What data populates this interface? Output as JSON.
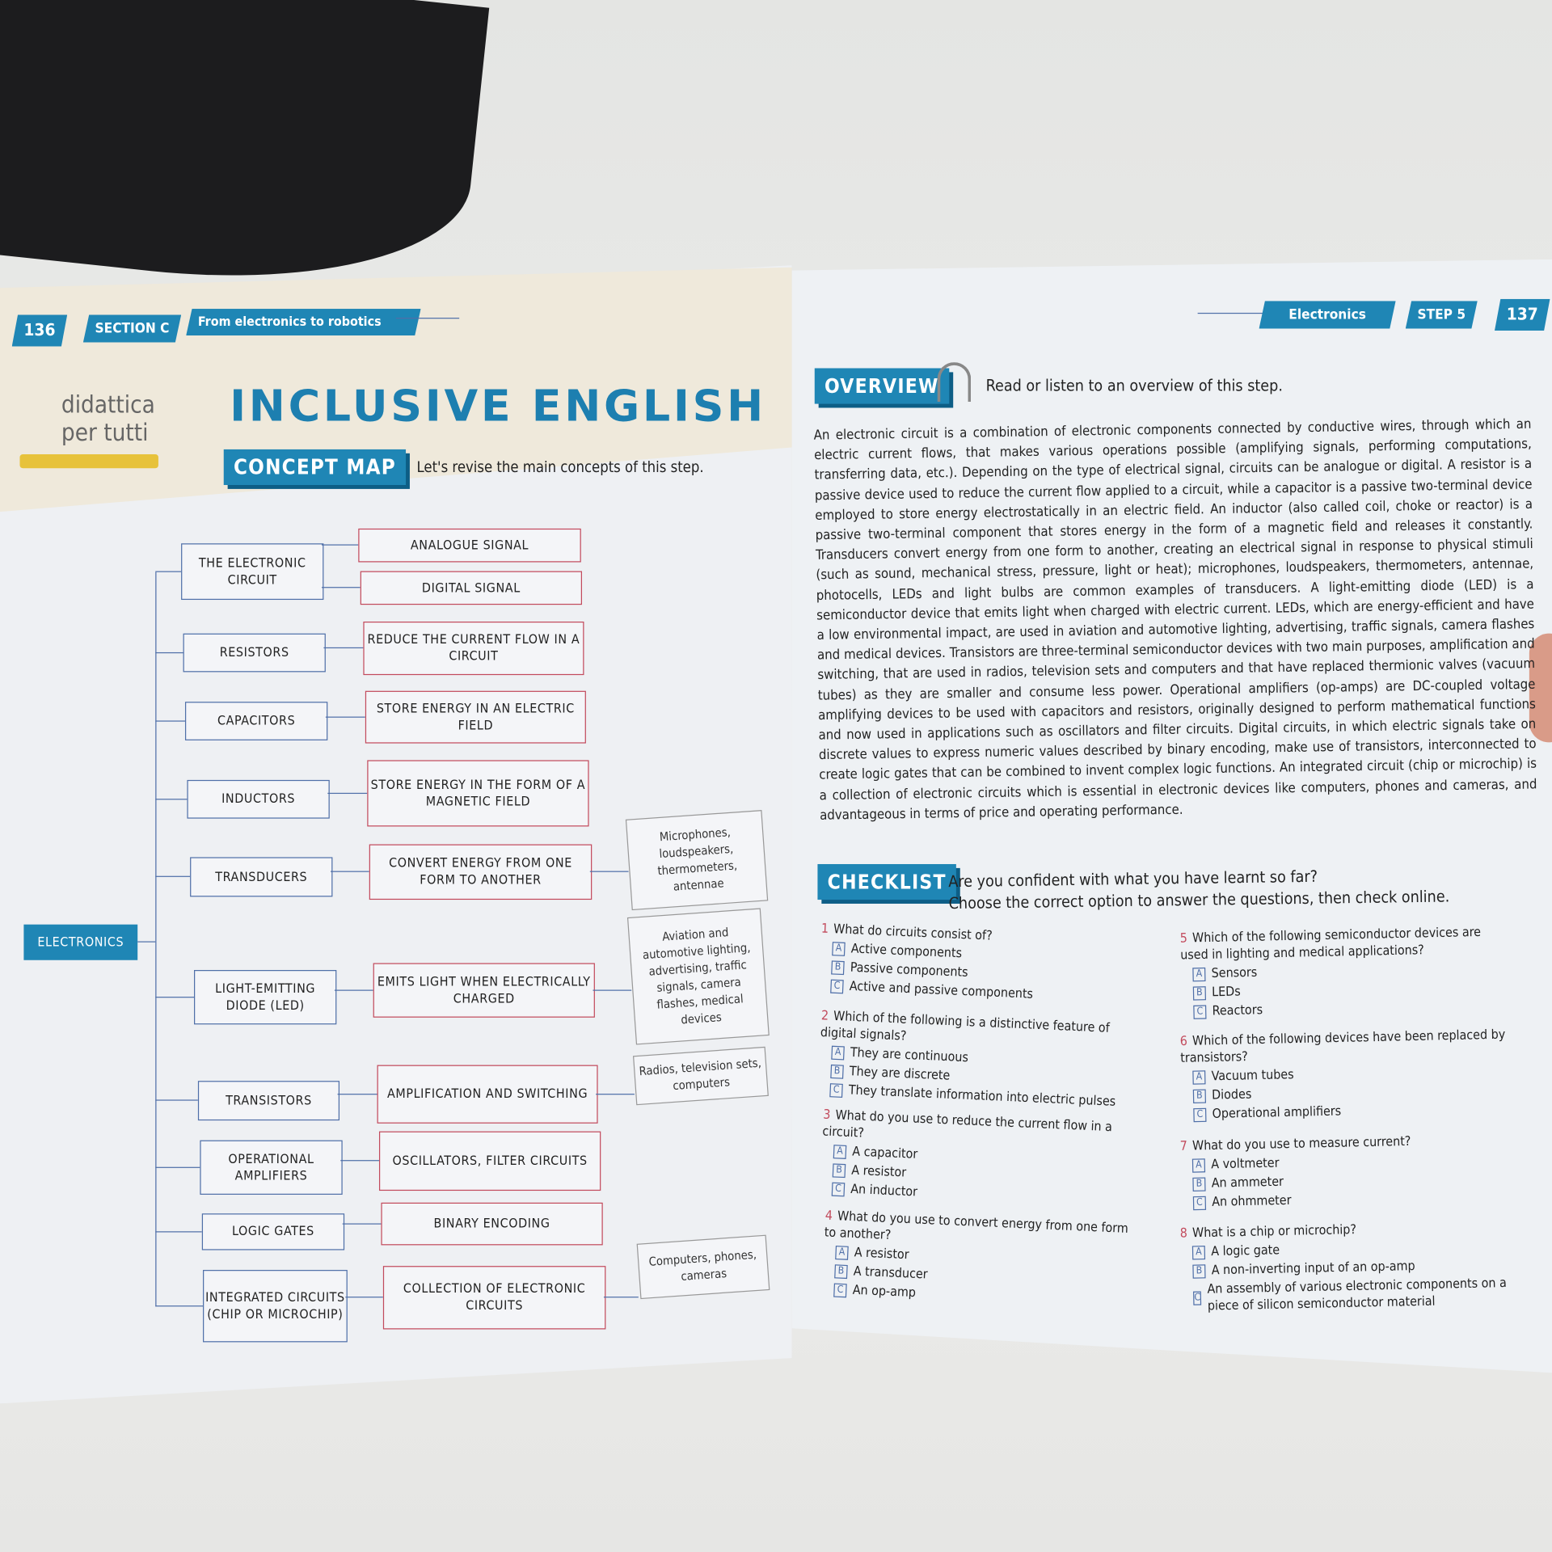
{
  "left_page": {
    "page_number": "136",
    "section": "SECTION C",
    "section_title": "From electronics to robotics",
    "logo": "didattica per tutti",
    "title": "INCLUSIVE ENGLISH",
    "badge": "CONCEPT MAP",
    "intro": "Let's revise the main concepts of this step.",
    "concept_map": {
      "root": "ELECTRONICS",
      "rows": [
        {
          "concept": "THE ELECTRONIC CIRCUIT",
          "details": [
            "ANALOGUE SIGNAL",
            "DIGITAL SIGNAL"
          ],
          "examples": ""
        },
        {
          "concept": "RESISTORS",
          "details": [
            "REDUCE THE CURRENT FLOW IN A CIRCUIT"
          ],
          "examples": ""
        },
        {
          "concept": "CAPACITORS",
          "details": [
            "STORE ENERGY IN AN ELECTRIC FIELD"
          ],
          "examples": ""
        },
        {
          "concept": "INDUCTORS",
          "details": [
            "STORE ENERGY IN THE FORM OF A MAGNETIC FIELD"
          ],
          "examples": ""
        },
        {
          "concept": "TRANSDUCERS",
          "details": [
            "CONVERT ENERGY FROM ONE FORM TO ANOTHER"
          ],
          "examples": "Microphones, loudspeakers, thermometers, antennae"
        },
        {
          "concept": "LIGHT-EMITTING DIODE (LED)",
          "details": [
            "EMITS LIGHT WHEN ELECTRICALLY CHARGED"
          ],
          "examples": "Aviation and automotive lighting, advertising, traffic signals, camera flashes, medical devices"
        },
        {
          "concept": "TRANSISTORS",
          "details": [
            "AMPLIFICATION AND SWITCHING"
          ],
          "examples": "Radios, television sets, computers"
        },
        {
          "concept": "OPERATIONAL AMPLIFIERS",
          "details": [
            "OSCILLATORS, FILTER CIRCUITS"
          ],
          "examples": ""
        },
        {
          "concept": "LOGIC GATES",
          "details": [
            "BINARY ENCODING"
          ],
          "examples": ""
        },
        {
          "concept": "INTEGRATED CIRCUITS (CHIP OR MICROCHIP)",
          "details": [
            "COLLECTION OF ELECTRONIC CIRCUITS"
          ],
          "examples": "Computers, phones, cameras"
        }
      ]
    }
  },
  "right_page": {
    "subject": "Electronics",
    "step": "STEP 5",
    "page_number": "137",
    "overview_badge": "OVERVIEW",
    "overview_intro": "Read or listen to an overview of this step.",
    "overview_text": "An electronic circuit is a combination of electronic components connected by conductive wires, through which an electric current flows, that makes various operations possible (amplifying signals, performing computations, transferring data, etc.). Depending on the type of electrical signal, circuits can be analogue or digital. A resistor is a passive device used to reduce the current flow applied to a circuit, while a capacitor is a passive two-terminal device employed to store energy electrostatically in an electric field. An inductor (also called coil, choke or reactor) is a passive two-terminal component that stores energy in the form of a magnetic field and releases it constantly. Transducers convert energy from one form to another, creating an electrical signal in response to physical stimuli (such as sound, mechanical stress, pressure, light or heat); microphones, loudspeakers, thermometers, antennae, photocells, LEDs and light bulbs are common examples of transducers. A light-emitting diode (LED) is a semiconductor device that emits light when charged with electric current. LEDs, which are energy-efficient and have a low environmental impact, are used in aviation and automotive lighting, advertising, traffic signals, camera flashes and medical devices. Transistors are three-terminal semiconductor devices with two main purposes, amplification and switching, that are used in radios, television sets and computers and that have replaced thermionic valves (vacuum tubes) as they are smaller and consume less power. Operational amplifiers (op-amps) are DC-coupled voltage amplifying devices to be used with capacitors and resistors, originally designed to perform mathematical functions and now used in applications such as oscillators and filter circuits. Digital circuits, in which electric signals take on discrete values to express numeric values described by binary encoding, make use of transistors, interconnected to create logic gates that can be combined to invent complex logic functions. An integrated circuit (chip or microchip) is a collection of electronic circuits which is essential in electronic devices like computers, phones and cameras, and advantageous in terms of price and operating performance.",
    "checklist_badge": "CHECKLIST",
    "checklist_line1": "Are you confident with what you have learnt so far?",
    "checklist_line2": "Choose the correct option to answer the questions, then check online.",
    "questions": [
      {
        "number": "1",
        "text": "What do circuits consist of?",
        "options": [
          [
            "A",
            "Active components"
          ],
          [
            "B",
            "Passive components"
          ],
          [
            "C",
            "Active and passive components"
          ]
        ]
      },
      {
        "number": "2",
        "text": "Which of the following is a distinctive feature of digital signals?",
        "options": [
          [
            "A",
            "They are continuous"
          ],
          [
            "B",
            "They are discrete"
          ],
          [
            "C",
            "They translate information into electric pulses"
          ]
        ]
      },
      {
        "number": "3",
        "text": "What do you use to reduce the current flow in a circuit?",
        "options": [
          [
            "A",
            "A capacitor"
          ],
          [
            "B",
            "A resistor"
          ],
          [
            "C",
            "An inductor"
          ]
        ]
      },
      {
        "number": "4",
        "text": "What do you use to convert energy from one form to another?",
        "options": [
          [
            "A",
            "A resistor"
          ],
          [
            "B",
            "A transducer"
          ],
          [
            "C",
            "An op-amp"
          ]
        ]
      },
      {
        "number": "5",
        "text": "Which of the following semiconductor devices are used in lighting and medical applications?",
        "options": [
          [
            "A",
            "Sensors"
          ],
          [
            "B",
            "LEDs"
          ],
          [
            "C",
            "Reactors"
          ]
        ]
      },
      {
        "number": "6",
        "text": "Which of the following devices have been replaced by transistors?",
        "options": [
          [
            "A",
            "Vacuum tubes"
          ],
          [
            "B",
            "Diodes"
          ],
          [
            "C",
            "Operational amplifiers"
          ]
        ]
      },
      {
        "number": "7",
        "text": "What do you use to measure current?",
        "options": [
          [
            "A",
            "A voltmeter"
          ],
          [
            "B",
            "An ammeter"
          ],
          [
            "C",
            "An ohmmeter"
          ]
        ]
      },
      {
        "number": "8",
        "text": "What is a chip or microchip?",
        "options": [
          [
            "A",
            "A logic gate"
          ],
          [
            "B",
            "A non-inverting input of an op-amp"
          ],
          [
            "C",
            "An assembly of various electronic components on a piece of silicon semiconductor material"
          ]
        ]
      }
    ]
  },
  "colors": {
    "accent": "#1f86b5",
    "detail_border": "#c24a5c",
    "concept_border": "#4f6fa8"
  }
}
